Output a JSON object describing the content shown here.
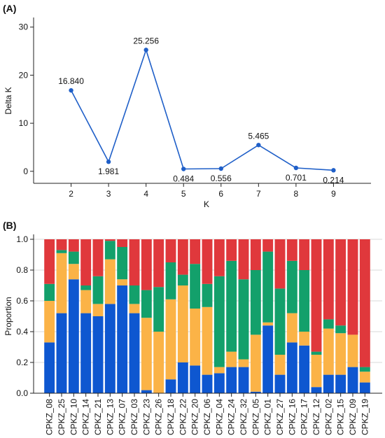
{
  "panels": {
    "a_label": "(A)",
    "b_label": "(B)"
  },
  "chart_data": [
    {
      "type": "line",
      "xlabel": "K",
      "ylabel": "Delta K",
      "x": [
        2,
        3,
        4,
        5,
        6,
        7,
        8,
        9
      ],
      "y": [
        16.84,
        1.981,
        25.256,
        0.484,
        0.556,
        5.465,
        0.701,
        0.214
      ],
      "data_labels": [
        "16.840",
        "1.981",
        "25.256",
        "0.484",
        "0.556",
        "5.465",
        "0.701",
        "0.214"
      ],
      "xticks": [
        "2",
        "3",
        "4",
        "5",
        "6",
        "7",
        "8",
        "9"
      ],
      "yticks": [
        "0",
        "10",
        "20",
        "30"
      ],
      "xlim": [
        1,
        10
      ],
      "ylim": [
        -2.5,
        32
      ],
      "color": "#1f5fc8",
      "grid": false
    },
    {
      "type": "bar",
      "stacked": true,
      "ylabel": "Proportion",
      "ylim": [
        0,
        1.0
      ],
      "yticks": [
        "0.0",
        "0.2",
        "0.4",
        "0.6",
        "0.8",
        "1.0"
      ],
      "grid": true,
      "categories": [
        "CPKZ_08",
        "CPKZ_25",
        "CPKZ_10",
        "CPKZ_14",
        "CPKZ_21",
        "CPKZ_13",
        "CPKZ_07",
        "CPKZ_03",
        "CPKZ_23",
        "CPKZ_26",
        "CPKZ_18",
        "CPKZ_22",
        "CPKZ_20",
        "CPKZ_06",
        "CPKZ_04",
        "CPKZ_24",
        "CPKZ_32",
        "CPKZ_05",
        "CPKZ_01",
        "CPKZ_27",
        "CPKZ_16",
        "CPKZ_17",
        "CPKZ_12",
        "CPKZ_02",
        "CPKZ_15",
        "CPKZ_09",
        "CPKZ_19"
      ],
      "series": [
        {
          "color": "#0e57d0",
          "values": [
            0.33,
            0.52,
            0.74,
            0.52,
            0.5,
            0.58,
            0.7,
            0.52,
            0.02,
            0.0,
            0.09,
            0.2,
            0.18,
            0.12,
            0.13,
            0.17,
            0.17,
            0.01,
            0.44,
            0.12,
            0.33,
            0.31,
            0.04,
            0.12,
            0.12,
            0.17,
            0.07
          ]
        },
        {
          "color": "#fbb347",
          "values": [
            0.27,
            0.39,
            0.1,
            0.15,
            0.08,
            0.29,
            0.04,
            0.06,
            0.47,
            0.4,
            0.52,
            0.5,
            0.37,
            0.44,
            0.04,
            0.1,
            0.05,
            0.37,
            0.02,
            0.13,
            0.19,
            0.09,
            0.21,
            0.3,
            0.27,
            0.21,
            0.07
          ]
        },
        {
          "color": "#13a06b",
          "values": [
            0.11,
            0.02,
            0.08,
            0.03,
            0.18,
            0.12,
            0.21,
            0.12,
            0.18,
            0.29,
            0.24,
            0.07,
            0.29,
            0.15,
            0.59,
            0.59,
            0.52,
            0.42,
            0.46,
            0.43,
            0.34,
            0.4,
            0.02,
            0.06,
            0.05,
            0.0,
            0.03
          ]
        },
        {
          "color": "#e0383c",
          "values": [
            0.29,
            0.07,
            0.08,
            0.3,
            0.24,
            0.01,
            0.05,
            0.3,
            0.33,
            0.31,
            0.15,
            0.23,
            0.16,
            0.29,
            0.24,
            0.14,
            0.26,
            0.2,
            0.08,
            0.32,
            0.14,
            0.2,
            0.73,
            0.52,
            0.56,
            0.62,
            0.83
          ]
        }
      ]
    }
  ]
}
